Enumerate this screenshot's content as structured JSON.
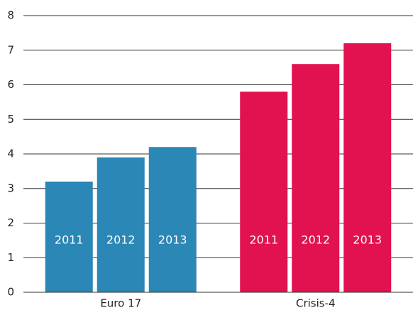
{
  "chart_data": {
    "type": "bar",
    "categories": [
      "Euro 17",
      "Crisis-4"
    ],
    "category_colors": [
      "#2a87b6",
      "#e2114f"
    ],
    "series": [
      {
        "name": "2011",
        "values": [
          3.2,
          5.8
        ]
      },
      {
        "name": "2012",
        "values": [
          3.9,
          6.6
        ]
      },
      {
        "name": "2013",
        "values": [
          4.2,
          7.2
        ]
      }
    ],
    "ylim": [
      0,
      8
    ],
    "yticks": [
      0,
      1,
      2,
      3,
      4,
      5,
      6,
      7,
      8
    ],
    "grid": true
  }
}
